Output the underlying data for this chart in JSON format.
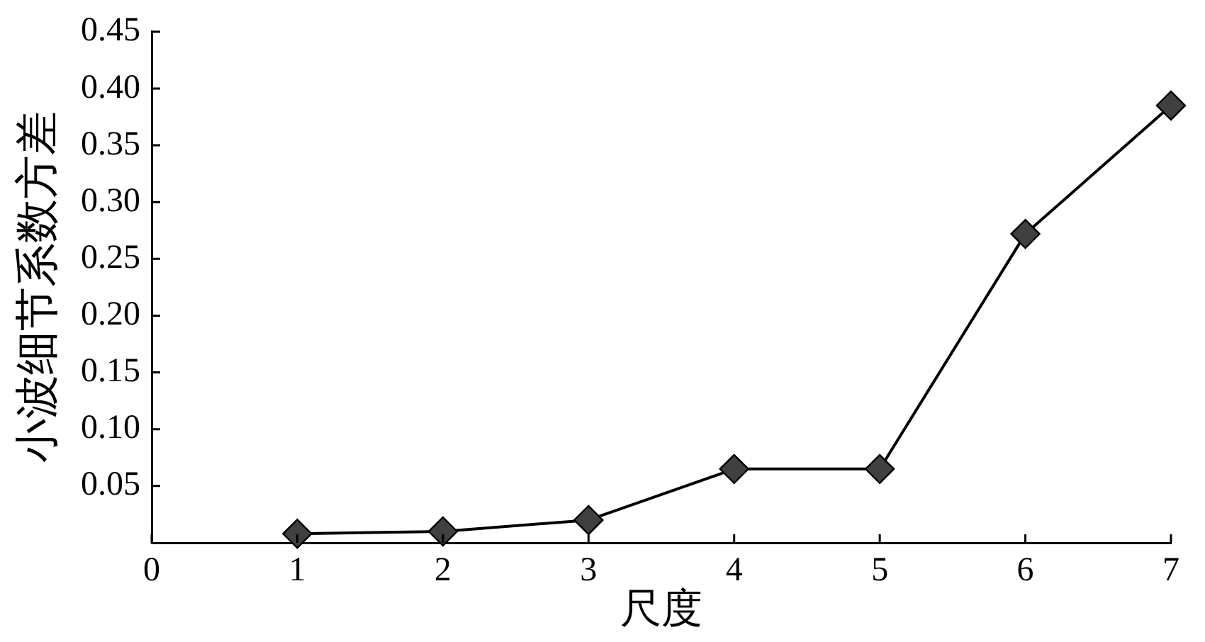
{
  "chart_data": {
    "type": "line",
    "xlabel": "尺度",
    "ylabel": "小波细节系数方差",
    "x": [
      1,
      2,
      3,
      4,
      5,
      6,
      7
    ],
    "series": [
      {
        "color": "#000000",
        "colors": [
          "#404040",
          "#404040",
          "#404040",
          "#404040",
          "#404040",
          "#404040",
          "#404040"
        ],
        "values": [
          0.008,
          0.01,
          0.02,
          0.065,
          0.065,
          0.272,
          0.385
        ]
      }
    ],
    "xlim": [
      0,
      7
    ],
    "xticks": [
      0,
      1,
      2,
      3,
      4,
      5,
      6,
      7
    ],
    "ylim": [
      0,
      0.45
    ],
    "yticks": [
      {
        "value": 0.05,
        "label": "0.05"
      },
      {
        "value": 0.1,
        "label": "0.10"
      },
      {
        "value": 0.15,
        "label": "0.15"
      },
      {
        "value": 0.2,
        "label": "0.20"
      },
      {
        "value": 0.25,
        "label": "0.25"
      },
      {
        "value": 0.3,
        "label": "0.30"
      },
      {
        "value": 0.35,
        "label": "0.35"
      },
      {
        "value": 0.4,
        "label": "0.40"
      },
      {
        "value": 0.45,
        "label": "0.45"
      }
    ],
    "marker": "diamond",
    "line_style": "solid"
  }
}
